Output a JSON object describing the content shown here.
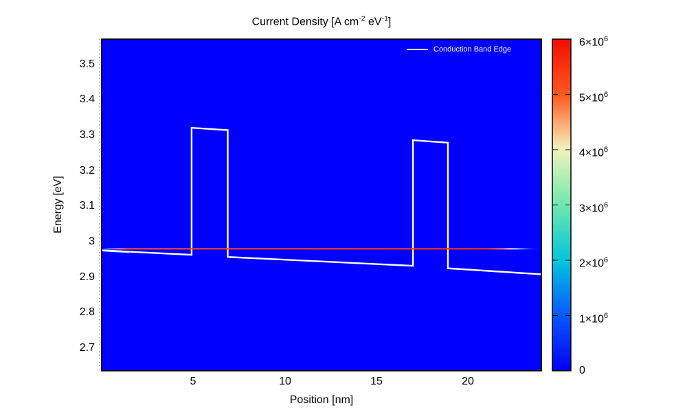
{
  "chart_data": {
    "type": "heatmap",
    "title": "Current Density [A cm^-2 eV^-1]",
    "title_parts": [
      {
        "text": "Current Density [A cm",
        "sup": false
      },
      {
        "text": "-2",
        "sup": true
      },
      {
        "text": " eV",
        "sup": false
      },
      {
        "text": "-1",
        "sup": true
      },
      {
        "text": "]",
        "sup": false
      }
    ],
    "xlabel": "Position [nm]",
    "ylabel": "Energy [eV]",
    "xlim": [
      0,
      24
    ],
    "ylim": [
      2.636,
      3.571
    ],
    "grid": false,
    "plot_bg_color": "#0000FE",
    "background_value": 0,
    "x_ticks": [
      {
        "v": 5,
        "label": "5"
      },
      {
        "v": 10,
        "label": "10"
      },
      {
        "v": 15,
        "label": "15"
      },
      {
        "v": 20,
        "label": "20"
      }
    ],
    "y_ticks": [
      {
        "v": 3.5,
        "label": "3.5"
      },
      {
        "v": 3.4,
        "label": "3.4"
      },
      {
        "v": 3.3,
        "label": "3.3"
      },
      {
        "v": 3.2,
        "label": "3.2"
      },
      {
        "v": 3.1,
        "label": "3.1"
      },
      {
        "v": 3.0,
        "label": "3"
      },
      {
        "v": 2.9,
        "label": "2.9"
      },
      {
        "v": 2.8,
        "label": "2.8"
      },
      {
        "v": 2.7,
        "label": "2.7"
      }
    ],
    "y_minor_step": 0.01,
    "legend": {
      "position": "top-right",
      "entries": [
        {
          "label": "Conduction Band Edge",
          "color": "#FFFFFF"
        }
      ]
    },
    "series": [
      {
        "name": "Conduction Band Edge",
        "type": "line",
        "color": "#FFFFFF",
        "points": [
          [
            0,
            2.9755
          ],
          [
            4.91,
            2.963
          ],
          [
            4.91,
            3.321
          ],
          [
            6.88,
            3.3145
          ],
          [
            6.88,
            2.957
          ],
          [
            16.99,
            2.932
          ],
          [
            16.99,
            3.286
          ],
          [
            18.9,
            3.279
          ],
          [
            18.9,
            2.925
          ],
          [
            24,
            2.908
          ]
        ]
      },
      {
        "name": "Resonant current density streak",
        "type": "heatmap-feature",
        "energy": 2.98,
        "x_range": [
          0,
          24
        ],
        "approx_value": "5e6 to 6e6 A cm^-2 eV^-1, fading to 0 at both contacts",
        "core_color": "#FF3300"
      },
      {
        "name": "Edge current tint at left contact",
        "type": "heatmap-feature",
        "points": [
          [
            0,
            2.9755
          ],
          [
            1.5,
            2.971
          ]
        ],
        "core_color": "#8FE9FF"
      }
    ],
    "resonance_gradient_stops": [
      [
        0.0,
        "#7FD8FF",
        0.0
      ],
      [
        0.018,
        "#9FD8FF",
        0.55
      ],
      [
        0.04,
        "#FF9090",
        0.9
      ],
      [
        0.06,
        "#FF4422",
        1.0
      ],
      [
        0.88,
        "#FF3300",
        1.0
      ],
      [
        0.915,
        "#FF7788",
        1.0
      ],
      [
        0.93,
        "#FFC8DC",
        1.0
      ],
      [
        0.945,
        "#9FD4FF",
        0.95
      ],
      [
        0.965,
        "#4A7BFF",
        0.75
      ],
      [
        0.99,
        "#2030FF",
        0.15
      ],
      [
        1.0,
        "#0000FF",
        0.0
      ]
    ],
    "colorbar": {
      "min": 0,
      "max": 6000000,
      "ticks": [
        {
          "v": 0,
          "label": "0"
        },
        {
          "v": 1000000,
          "label": "1×10^6"
        },
        {
          "v": 2000000,
          "label": "2×10^6"
        },
        {
          "v": 3000000,
          "label": "3×10^6"
        },
        {
          "v": 4000000,
          "label": "4×10^6"
        },
        {
          "v": 5000000,
          "label": "5×10^6"
        },
        {
          "v": 6000000,
          "label": "6×10^6"
        }
      ],
      "gradient_stops": [
        [
          0.0,
          "#0000F2"
        ],
        [
          0.17,
          "#0A5AFF"
        ],
        [
          0.33,
          "#00C4DC"
        ],
        [
          0.5,
          "#6FE8AE"
        ],
        [
          0.67,
          "#F4F2BE"
        ],
        [
          0.83,
          "#FF5A20"
        ],
        [
          1.0,
          "#F20D00"
        ]
      ]
    }
  }
}
